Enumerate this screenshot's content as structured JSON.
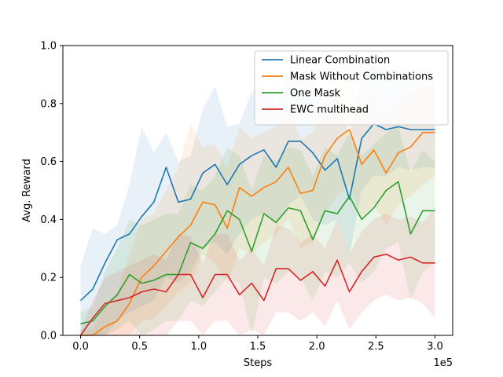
{
  "chart_data": {
    "type": "line",
    "xlabel": "Steps",
    "ylabel": "Avg. Reward",
    "x_offset_label": "1e5",
    "xlim": [
      -0.15,
      3.15
    ],
    "ylim": [
      0.0,
      1.0
    ],
    "x_unit_multiplier": 100000,
    "xticks": [
      0.0,
      0.5,
      1.0,
      1.5,
      2.0,
      2.5,
      3.0
    ],
    "xtick_labels": [
      "0.0",
      "0.5",
      "1.0",
      "1.5",
      "2.0",
      "2.5",
      "3.0"
    ],
    "yticks": [
      0.0,
      0.2,
      0.4,
      0.6,
      0.8,
      1.0
    ],
    "ytick_labels": [
      "0.0",
      "0.2",
      "0.4",
      "0.6",
      "0.8",
      "1.0"
    ],
    "grid": false,
    "legend_position": "top-right",
    "x": [
      0.0,
      0.1034,
      0.2069,
      0.3103,
      0.4138,
      0.5172,
      0.6207,
      0.7241,
      0.8276,
      0.931,
      1.0345,
      1.1379,
      1.2414,
      1.3448,
      1.4483,
      1.5517,
      1.6552,
      1.7586,
      1.8621,
      1.9655,
      2.069,
      2.1724,
      2.2759,
      2.3793,
      2.4828,
      2.5862,
      2.6897,
      2.7931,
      2.8966,
      3.0
    ],
    "series": [
      {
        "name": "Linear Combination",
        "color": "#1f77b4",
        "values": [
          0.12,
          0.16,
          0.25,
          0.33,
          0.35,
          0.41,
          0.46,
          0.58,
          0.46,
          0.47,
          0.56,
          0.59,
          0.52,
          0.59,
          0.62,
          0.64,
          0.58,
          0.67,
          0.67,
          0.63,
          0.57,
          0.61,
          0.47,
          0.68,
          0.73,
          0.71,
          0.72,
          0.71,
          0.71,
          0.71
        ],
        "lower": [
          0.0,
          0.0,
          0.0,
          0.05,
          0.08,
          0.1,
          0.12,
          0.2,
          0.18,
          0.22,
          0.3,
          0.32,
          0.28,
          0.35,
          0.4,
          0.42,
          0.38,
          0.45,
          0.48,
          0.4,
          0.38,
          0.4,
          0.28,
          0.5,
          0.55,
          0.55,
          0.58,
          0.57,
          0.58,
          0.58
        ],
        "upper": [
          0.24,
          0.37,
          0.35,
          0.38,
          0.52,
          0.72,
          0.63,
          0.7,
          0.6,
          0.62,
          0.78,
          0.86,
          0.72,
          0.73,
          0.84,
          0.86,
          0.8,
          0.9,
          0.88,
          0.9,
          0.8,
          0.85,
          0.68,
          0.9,
          0.93,
          0.92,
          0.92,
          0.88,
          0.9,
          0.88
        ]
      },
      {
        "name": "Mask Without Combinations",
        "color": "#ff7f0e",
        "values": [
          0.0,
          0.0,
          0.03,
          0.05,
          0.11,
          0.2,
          0.24,
          0.29,
          0.34,
          0.38,
          0.46,
          0.45,
          0.37,
          0.51,
          0.48,
          0.51,
          0.53,
          0.58,
          0.49,
          0.5,
          0.62,
          0.68,
          0.71,
          0.59,
          0.64,
          0.56,
          0.63,
          0.65,
          0.7,
          0.7
        ],
        "lower": [
          0.0,
          0.0,
          0.0,
          0.0,
          0.0,
          0.05,
          0.06,
          0.1,
          0.15,
          0.18,
          0.28,
          0.25,
          0.18,
          0.3,
          0.28,
          0.32,
          0.35,
          0.4,
          0.3,
          0.32,
          0.42,
          0.48,
          0.52,
          0.4,
          0.45,
          0.38,
          0.45,
          0.48,
          0.52,
          0.55
        ],
        "upper": [
          0.02,
          0.02,
          0.1,
          0.15,
          0.28,
          0.4,
          0.42,
          0.5,
          0.58,
          0.73,
          0.65,
          0.66,
          0.58,
          0.72,
          0.68,
          0.7,
          0.72,
          0.78,
          0.68,
          0.7,
          0.82,
          0.88,
          0.9,
          0.78,
          0.84,
          0.76,
          0.82,
          0.84,
          0.86,
          0.86
        ]
      },
      {
        "name": "One Mask",
        "color": "#2ca02c",
        "values": [
          0.04,
          0.05,
          0.1,
          0.14,
          0.21,
          0.18,
          0.19,
          0.21,
          0.21,
          0.32,
          0.3,
          0.35,
          0.43,
          0.4,
          0.29,
          0.42,
          0.39,
          0.44,
          0.43,
          0.33,
          0.43,
          0.42,
          0.48,
          0.4,
          0.44,
          0.5,
          0.53,
          0.35,
          0.43,
          0.43
        ],
        "lower": [
          0.0,
          0.0,
          0.0,
          0.02,
          0.05,
          0.0,
          0.02,
          0.05,
          0.05,
          0.12,
          0.1,
          0.15,
          0.2,
          0.18,
          0.0,
          0.2,
          0.18,
          0.22,
          0.2,
          0.12,
          0.22,
          0.2,
          0.25,
          0.18,
          0.22,
          0.3,
          0.32,
          0.12,
          0.22,
          0.25
        ],
        "upper": [
          0.08,
          0.1,
          0.22,
          0.3,
          0.4,
          0.38,
          0.4,
          0.42,
          0.42,
          0.52,
          0.5,
          0.55,
          0.65,
          0.62,
          0.5,
          0.62,
          0.6,
          0.65,
          0.64,
          0.55,
          0.65,
          0.62,
          0.7,
          0.62,
          0.66,
          0.7,
          0.72,
          0.56,
          0.64,
          0.6
        ]
      },
      {
        "name": "EWC multihead",
        "color": "#d62728",
        "values": [
          0.0,
          0.06,
          0.11,
          0.12,
          0.13,
          0.15,
          0.16,
          0.15,
          0.21,
          0.21,
          0.13,
          0.21,
          0.21,
          0.14,
          0.18,
          0.12,
          0.23,
          0.23,
          0.19,
          0.22,
          0.17,
          0.26,
          0.15,
          0.22,
          0.27,
          0.28,
          0.26,
          0.27,
          0.25,
          0.25
        ],
        "lower": [
          0.0,
          0.0,
          0.0,
          0.0,
          0.0,
          0.0,
          0.0,
          0.0,
          0.05,
          0.05,
          0.0,
          0.05,
          0.05,
          0.0,
          0.02,
          0.0,
          0.08,
          0.08,
          0.05,
          0.08,
          0.03,
          0.12,
          0.02,
          0.08,
          0.12,
          0.14,
          0.12,
          0.13,
          0.11,
          0.06
        ],
        "upper": [
          0.02,
          0.12,
          0.2,
          0.22,
          0.24,
          0.26,
          0.28,
          0.26,
          0.35,
          0.34,
          0.25,
          0.35,
          0.35,
          0.26,
          0.3,
          0.24,
          0.38,
          0.37,
          0.32,
          0.35,
          0.3,
          0.4,
          0.28,
          0.36,
          0.4,
          0.42,
          0.4,
          0.41,
          0.39,
          0.44
        ]
      }
    ]
  }
}
